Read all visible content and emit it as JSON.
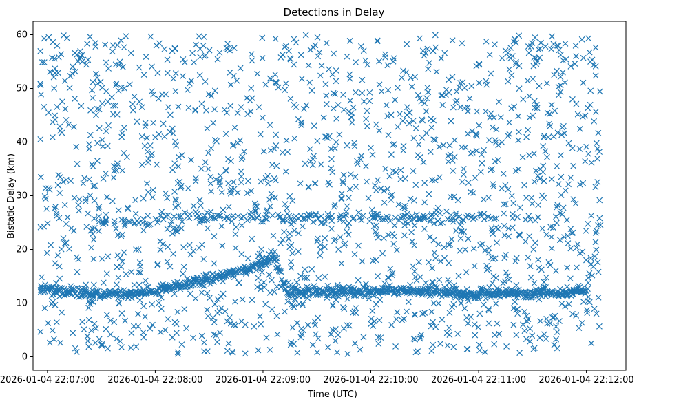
{
  "chart_data": {
    "type": "scatter",
    "title": "Detections in Delay",
    "xlabel": "Time (UTC)",
    "ylabel": "Bistatic Delay (km)",
    "marker": "x",
    "color": "#1f77b4",
    "grid": false,
    "xlim_seconds": [
      -8,
      322
    ],
    "ylim": [
      -2.5,
      62.5
    ],
    "x_ticks": [
      {
        "label": "2026-01-04 22:07:00",
        "seconds": 0
      },
      {
        "label": "2026-01-04 22:08:00",
        "seconds": 60
      },
      {
        "label": "2026-01-04 22:09:00",
        "seconds": 120
      },
      {
        "label": "2026-01-04 22:10:00",
        "seconds": 180
      },
      {
        "label": "2026-01-04 22:11:00",
        "seconds": 240
      },
      {
        "label": "2026-01-04 22:12:00",
        "seconds": 300
      }
    ],
    "y_ticks": [
      0,
      10,
      20,
      30,
      40,
      50,
      60
    ],
    "time_range_seconds": [
      -4,
      308
    ],
    "track_low": [
      [
        -4,
        12.8
      ],
      [
        10,
        12.2
      ],
      [
        28,
        11.5
      ],
      [
        33,
        11.8
      ],
      [
        45,
        11.6
      ],
      [
        60,
        12.3
      ],
      [
        75,
        13.4
      ],
      [
        90,
        14.6
      ],
      [
        110,
        16.2
      ],
      [
        127,
        18.7
      ],
      [
        133,
        12.0
      ],
      [
        160,
        12.0
      ],
      [
        168,
        12.1
      ],
      [
        185,
        12.3
      ],
      [
        240,
        11.7
      ],
      [
        248,
        12.0
      ],
      [
        262,
        11.8
      ],
      [
        274,
        11.6
      ],
      [
        300,
        12.3
      ]
    ],
    "track_high": [
      [
        24,
        23.4
      ],
      [
        36,
        25.5
      ],
      [
        55,
        24.6
      ],
      [
        62,
        25.8
      ],
      [
        96,
        26.1
      ],
      [
        125,
        25.9
      ],
      [
        210,
        26.0
      ],
      [
        250,
        25.7
      ]
    ],
    "clutter_range_km": [
      0.5,
      60
    ]
  }
}
